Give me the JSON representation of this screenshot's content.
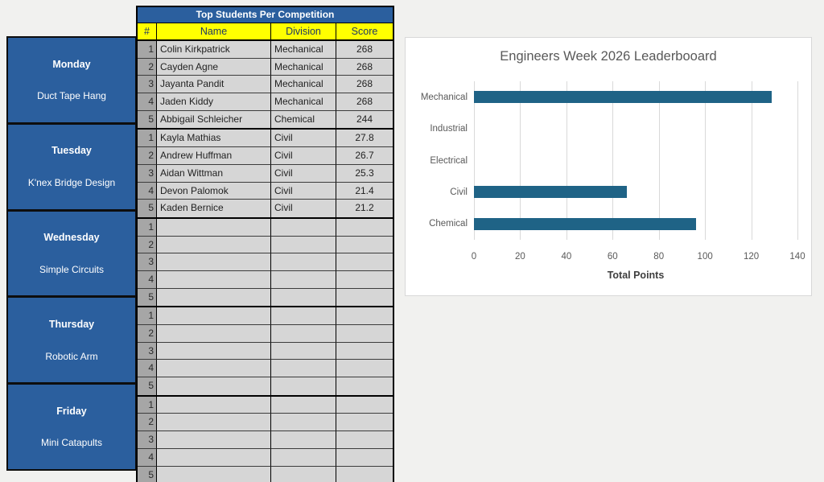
{
  "colors": {
    "accent_blue": "#2B5F9E",
    "header_yellow": "#FFFF00",
    "header_text_navy": "#1F3864",
    "num_col_gray": "#A6A6A6",
    "cell_gray": "#D6D6D6",
    "bar_teal": "#1F6386",
    "chart_text_gray": "#595959",
    "page_bg": "#F1F1EF"
  },
  "table": {
    "title": "Top Students Per Competition",
    "columns": [
      "#",
      "Name",
      "Division",
      "Score"
    ],
    "groups": [
      {
        "day": "Monday",
        "event": "Duct Tape Hang",
        "rows": [
          {
            "num": "1",
            "name": "Colin Kirkpatrick",
            "division": "Mechanical",
            "score": "268"
          },
          {
            "num": "2",
            "name": "Cayden Agne",
            "division": "Mechanical",
            "score": "268"
          },
          {
            "num": "3",
            "name": "Jayanta Pandit",
            "division": "Mechanical",
            "score": "268"
          },
          {
            "num": "4",
            "name": "Jaden Kiddy",
            "division": "Mechanical",
            "score": "268"
          },
          {
            "num": "5",
            "name": "Abbigail Schleicher",
            "division": "Chemical",
            "score": "244"
          }
        ]
      },
      {
        "day": "Tuesday",
        "event": "K'nex Bridge Design",
        "rows": [
          {
            "num": "1",
            "name": "Kayla Mathias",
            "division": "Civil",
            "score": "27.8"
          },
          {
            "num": "2",
            "name": "Andrew Huffman",
            "division": "Civil",
            "score": "26.7"
          },
          {
            "num": "3",
            "name": "Aidan Wittman",
            "division": "Civil",
            "score": "25.3"
          },
          {
            "num": "4",
            "name": "Devon Palomok",
            "division": "Civil",
            "score": "21.4"
          },
          {
            "num": "5",
            "name": "Kaden Bernice",
            "division": "Civil",
            "score": "21.2"
          }
        ]
      },
      {
        "day": "Wednesday",
        "event": "Simple Circuits",
        "rows": [
          {
            "num": "1",
            "name": "",
            "division": "",
            "score": ""
          },
          {
            "num": "2",
            "name": "",
            "division": "",
            "score": ""
          },
          {
            "num": "3",
            "name": "",
            "division": "",
            "score": ""
          },
          {
            "num": "4",
            "name": "",
            "division": "",
            "score": ""
          },
          {
            "num": "5",
            "name": "",
            "division": "",
            "score": ""
          }
        ]
      },
      {
        "day": "Thursday",
        "event": "Robotic Arm",
        "rows": [
          {
            "num": "1",
            "name": "",
            "division": "",
            "score": ""
          },
          {
            "num": "2",
            "name": "",
            "division": "",
            "score": ""
          },
          {
            "num": "3",
            "name": "",
            "division": "",
            "score": ""
          },
          {
            "num": "4",
            "name": "",
            "division": "",
            "score": ""
          },
          {
            "num": "5",
            "name": "",
            "division": "",
            "score": ""
          }
        ]
      },
      {
        "day": "Friday",
        "event": "Mini Catapults",
        "rows": [
          {
            "num": "1",
            "name": "",
            "division": "",
            "score": ""
          },
          {
            "num": "2",
            "name": "",
            "division": "",
            "score": ""
          },
          {
            "num": "3",
            "name": "",
            "division": "",
            "score": ""
          },
          {
            "num": "4",
            "name": "",
            "division": "",
            "score": ""
          },
          {
            "num": "5",
            "name": "",
            "division": "",
            "score": ""
          }
        ]
      }
    ]
  },
  "chart_data": {
    "type": "bar",
    "orientation": "horizontal",
    "title": "Engineers Week 2026 Leaderbooard",
    "categories": [
      "Mechanical",
      "Industrial",
      "Electrical",
      "Civil",
      "Chemical"
    ],
    "values": [
      129,
      0,
      0,
      66,
      96
    ],
    "xlabel": "Total Points",
    "ylabel": "",
    "xlim": [
      0,
      140
    ],
    "xticks": [
      0,
      20,
      40,
      60,
      80,
      100,
      120,
      140
    ],
    "grid": true,
    "legend": false,
    "bar_color": "#1F6386"
  }
}
